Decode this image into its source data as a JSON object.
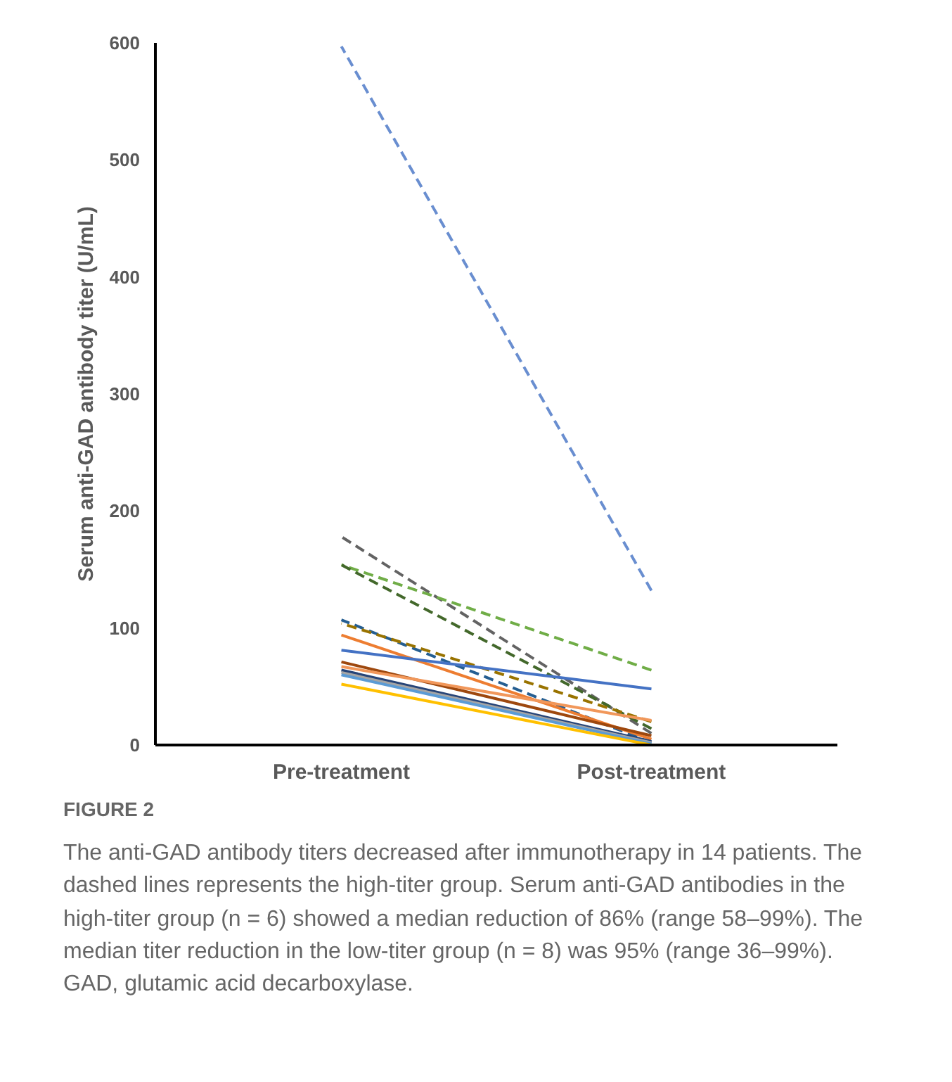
{
  "chart_data": {
    "type": "line",
    "ylabel": "Serum anti-GAD antibody titer (U/mL)",
    "categories": [
      "Pre-treatment",
      "Post-treatment"
    ],
    "ylim": [
      0,
      600
    ],
    "yticks": [
      0,
      100,
      200,
      300,
      400,
      500,
      600
    ],
    "grid": false,
    "marker": "none",
    "series": [
      {
        "color": "#698ed0",
        "values": [
          597,
          132
        ],
        "line_style": "dashed"
      },
      {
        "color": "#636363",
        "values": [
          178,
          10
        ],
        "line_style": "dashed"
      },
      {
        "color": "#70ad47",
        "values": [
          154,
          64
        ],
        "line_style": "dashed"
      },
      {
        "color": "#43682b",
        "values": [
          154,
          14
        ],
        "line_style": "dashed"
      },
      {
        "color": "#255e91",
        "values": [
          107,
          2
        ],
        "line_style": "dashed"
      },
      {
        "color": "#997300",
        "values": [
          104,
          20
        ],
        "line_style": "dashed"
      },
      {
        "color": "#ed7d31",
        "values": [
          94,
          5
        ],
        "line_style": "solid"
      },
      {
        "color": "#4472c4",
        "values": [
          81,
          48
        ],
        "line_style": "solid"
      },
      {
        "color": "#9e480e",
        "values": [
          71,
          8
        ],
        "line_style": "solid"
      },
      {
        "color": "#f1975a",
        "values": [
          67,
          21
        ],
        "line_style": "solid"
      },
      {
        "color": "#264478",
        "values": [
          64,
          3
        ],
        "line_style": "solid"
      },
      {
        "color": "#a5a5a5",
        "values": [
          62,
          2
        ],
        "line_style": "solid"
      },
      {
        "color": "#5b9bd5",
        "values": [
          60,
          1
        ],
        "line_style": "solid"
      },
      {
        "color": "#ffc000",
        "values": [
          52,
          0
        ],
        "line_style": "solid"
      }
    ],
    "annotations": [
      "FIGURE 2",
      "The anti-GAD antibody titers decreased after immunotherapy in 14 patients. The dashed lines represents the high-titer group. Serum anti-GAD antibodies in the high-titer group (n = 6) showed a median reduction of 86% (range 58–99%). The median titer reduction in the low-titer group (n = 8) was 95% (range 36–99%). GAD, glutamic acid decarboxylase."
    ]
  }
}
